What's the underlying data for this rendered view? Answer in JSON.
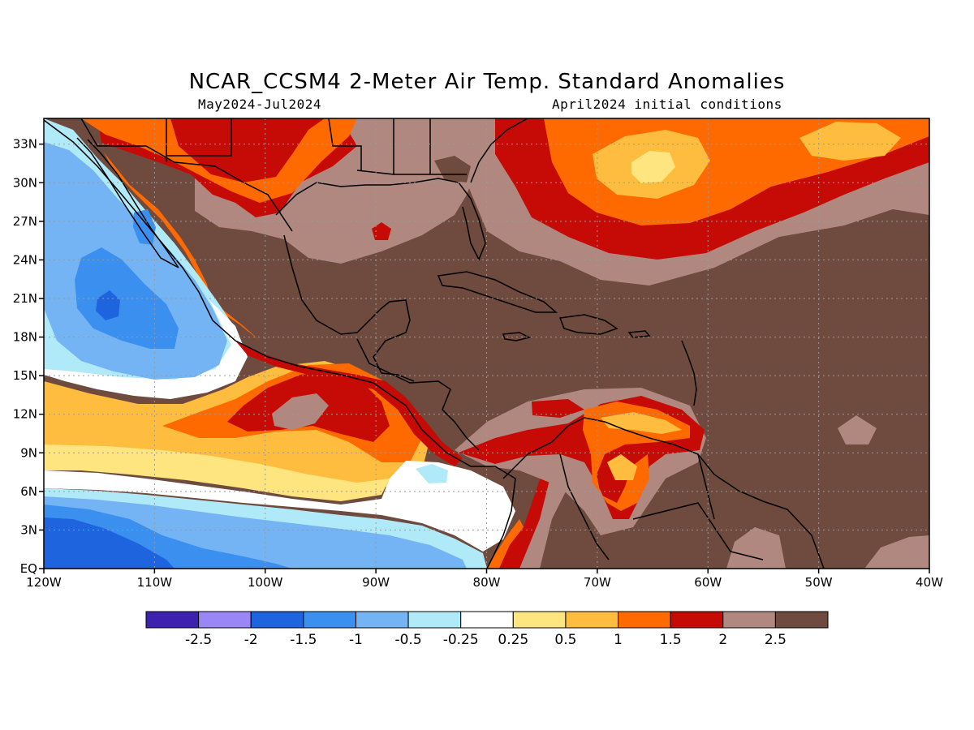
{
  "title": "NCAR_CCSM4 2-Meter Air Temp. Standard Anomalies",
  "subtitle_left": "May2024-Jul2024",
  "subtitle_right": "April2024 initial conditions",
  "map": {
    "lon_range": [
      -120,
      -40
    ],
    "lat_range": [
      0,
      35
    ],
    "gridlines": "dotted",
    "lon_ticks": [
      {
        "lon": -120,
        "label": "120W"
      },
      {
        "lon": -110,
        "label": "110W"
      },
      {
        "lon": -100,
        "label": "100W"
      },
      {
        "lon": -90,
        "label": "90W"
      },
      {
        "lon": -80,
        "label": "80W"
      },
      {
        "lon": -70,
        "label": "70W"
      },
      {
        "lon": -60,
        "label": "60W"
      },
      {
        "lon": -50,
        "label": "50W"
      },
      {
        "lon": -40,
        "label": "40W"
      }
    ],
    "lat_ticks": [
      {
        "lat": 0,
        "label": "EQ"
      },
      {
        "lat": 3,
        "label": "3N"
      },
      {
        "lat": 6,
        "label": "6N"
      },
      {
        "lat": 9,
        "label": "9N"
      },
      {
        "lat": 12,
        "label": "12N"
      },
      {
        "lat": 15,
        "label": "15N"
      },
      {
        "lat": 18,
        "label": "18N"
      },
      {
        "lat": 21,
        "label": "21N"
      },
      {
        "lat": 24,
        "label": "24N"
      },
      {
        "lat": 27,
        "label": "27N"
      },
      {
        "lat": 30,
        "label": "30N"
      },
      {
        "lat": 33,
        "label": "33N"
      }
    ]
  },
  "colorbar": {
    "colors": [
      "#3d22b0",
      "#9b86f5",
      "#1d64de",
      "#3a8fef",
      "#74b4f5",
      "#b0eaf8",
      "#ffffff",
      "#ffe580",
      "#ffbd3f",
      "#ff6a00",
      "#c60b06",
      "#b08880",
      "#6f4a3e"
    ],
    "labels": [
      "-2.5",
      "-2",
      "-1.5",
      "-1",
      "-0.5",
      "-0.25",
      "0.25",
      "0.5",
      "1",
      "1.5",
      "2",
      "2.5"
    ]
  }
}
